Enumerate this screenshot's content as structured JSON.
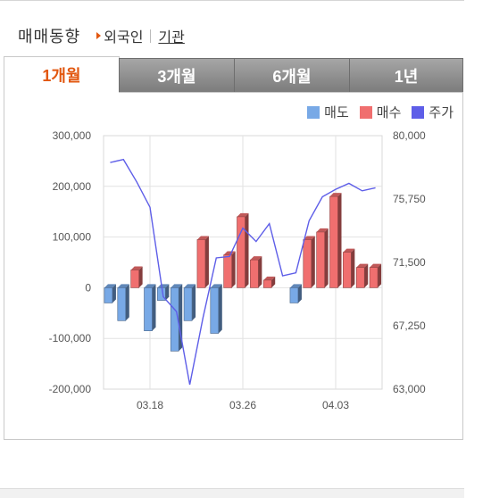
{
  "header": {
    "title": "매매동향",
    "foreign_label": "외국인",
    "institution_label": "기관"
  },
  "tabs": [
    {
      "label": "1개월",
      "active": true
    },
    {
      "label": "3개월",
      "active": false
    },
    {
      "label": "6개월",
      "active": false
    },
    {
      "label": "1년",
      "active": false
    }
  ],
  "legend": [
    {
      "label": "매도",
      "color": "#78a9e6"
    },
    {
      "label": "매수",
      "color": "#f06f6f"
    },
    {
      "label": "주가",
      "color": "#5e5ee8"
    }
  ],
  "chart_data": {
    "type": "bar",
    "x_tick_labels": [
      "03.18",
      "03.26",
      "04.03"
    ],
    "y_left": {
      "range": [
        -200000,
        300000
      ],
      "tick_labels": [
        "300,000",
        "200,000",
        "100,000",
        "0",
        "-100,000",
        "-200,000"
      ]
    },
    "y_right": {
      "range": [
        63000,
        80000
      ],
      "tick_labels": [
        "80,000",
        "75,750",
        "71,500",
        "67,250",
        "63,000"
      ]
    },
    "series": [
      {
        "name": "매도",
        "color": "#78a9e6",
        "values": [
          -30000,
          -65000,
          0,
          -85000,
          -25000,
          -125000,
          -65000,
          0,
          -90000,
          0,
          0,
          0,
          0,
          0,
          -30000,
          0,
          0,
          0,
          0,
          0,
          0
        ]
      },
      {
        "name": "매수",
        "color": "#f06f6f",
        "values": [
          0,
          0,
          35000,
          0,
          0,
          0,
          0,
          95000,
          0,
          65000,
          140000,
          55000,
          15000,
          0,
          0,
          95000,
          110000,
          180000,
          70000,
          40000,
          40000
        ]
      },
      {
        "name": "주가",
        "color": "#5e5ee8",
        "values": [
          78200,
          78400,
          76900,
          75200,
          69200,
          68200,
          63300,
          67800,
          71800,
          71900,
          73800,
          72900,
          74100,
          70600,
          70800,
          74300,
          75900,
          76400,
          76800,
          76300,
          76500
        ]
      }
    ],
    "grid": true
  }
}
